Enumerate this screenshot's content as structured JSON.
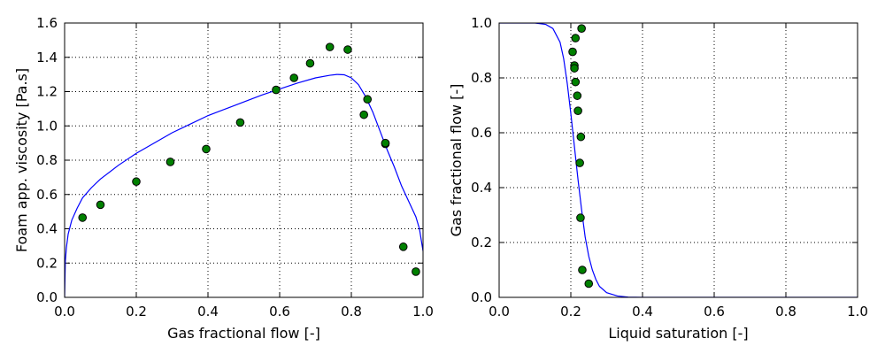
{
  "figure": {
    "line_color": "#0000ff",
    "marker_fill": "#008000",
    "marker_edge": "#000000"
  },
  "chart_data": [
    {
      "type": "scatter",
      "title": "",
      "xlabel": "Gas fractional flow [-]",
      "ylabel": "Foam app. viscosity [Pa.s]",
      "xlim": [
        0,
        1
      ],
      "ylim": [
        0,
        1.6
      ],
      "xticks": [
        0.0,
        0.2,
        0.4,
        0.6,
        0.8,
        1.0
      ],
      "xtick_labels": [
        "0.0",
        "0.2",
        "0.4",
        "0.6",
        "0.8",
        "1.0"
      ],
      "yticks": [
        0.0,
        0.2,
        0.4,
        0.6,
        0.8,
        1.0,
        1.2,
        1.4,
        1.6
      ],
      "ytick_labels": [
        "0.0",
        "0.2",
        "0.4",
        "0.6",
        "0.8",
        "1.0",
        "1.2",
        "1.4",
        "1.6"
      ],
      "grid": true,
      "legend": "none",
      "points": [
        {
          "x": 0.05,
          "y": 0.465
        },
        {
          "x": 0.1,
          "y": 0.54
        },
        {
          "x": 0.2,
          "y": 0.675
        },
        {
          "x": 0.295,
          "y": 0.79
        },
        {
          "x": 0.395,
          "y": 0.865
        },
        {
          "x": 0.49,
          "y": 1.02
        },
        {
          "x": 0.59,
          "y": 1.21
        },
        {
          "x": 0.64,
          "y": 1.28
        },
        {
          "x": 0.685,
          "y": 1.365
        },
        {
          "x": 0.74,
          "y": 1.46
        },
        {
          "x": 0.79,
          "y": 1.445
        },
        {
          "x": 0.835,
          "y": 1.065
        },
        {
          "x": 0.845,
          "y": 1.155
        },
        {
          "x": 0.895,
          "y": 0.895
        },
        {
          "x": 0.895,
          "y": 0.9
        },
        {
          "x": 0.945,
          "y": 0.295
        },
        {
          "x": 0.98,
          "y": 0.15
        }
      ],
      "curve": [
        {
          "x": 0.0,
          "y": 0.0
        },
        {
          "x": 0.002,
          "y": 0.21
        },
        {
          "x": 0.005,
          "y": 0.29
        },
        {
          "x": 0.01,
          "y": 0.37
        },
        {
          "x": 0.02,
          "y": 0.45
        },
        {
          "x": 0.035,
          "y": 0.52
        },
        {
          "x": 0.05,
          "y": 0.58
        },
        {
          "x": 0.075,
          "y": 0.64
        },
        {
          "x": 0.1,
          "y": 0.69
        },
        {
          "x": 0.15,
          "y": 0.77
        },
        {
          "x": 0.2,
          "y": 0.84
        },
        {
          "x": 0.25,
          "y": 0.9
        },
        {
          "x": 0.3,
          "y": 0.96
        },
        {
          "x": 0.35,
          "y": 1.01
        },
        {
          "x": 0.4,
          "y": 1.06
        },
        {
          "x": 0.45,
          "y": 1.1
        },
        {
          "x": 0.5,
          "y": 1.14
        },
        {
          "x": 0.55,
          "y": 1.18
        },
        {
          "x": 0.6,
          "y": 1.215
        },
        {
          "x": 0.65,
          "y": 1.25
        },
        {
          "x": 0.7,
          "y": 1.28
        },
        {
          "x": 0.74,
          "y": 1.295
        },
        {
          "x": 0.76,
          "y": 1.3
        },
        {
          "x": 0.78,
          "y": 1.298
        },
        {
          "x": 0.8,
          "y": 1.28
        },
        {
          "x": 0.82,
          "y": 1.24
        },
        {
          "x": 0.84,
          "y": 1.17
        },
        {
          "x": 0.86,
          "y": 1.08
        },
        {
          "x": 0.88,
          "y": 0.97
        },
        {
          "x": 0.9,
          "y": 0.86
        },
        {
          "x": 0.92,
          "y": 0.76
        },
        {
          "x": 0.94,
          "y": 0.65
        },
        {
          "x": 0.96,
          "y": 0.56
        },
        {
          "x": 0.98,
          "y": 0.47
        },
        {
          "x": 0.99,
          "y": 0.4
        },
        {
          "x": 1.0,
          "y": 0.27
        }
      ]
    },
    {
      "type": "scatter",
      "title": "",
      "xlabel": "Liquid saturation [-]",
      "ylabel": "Gas fractional flow [-]",
      "xlim": [
        0,
        1
      ],
      "ylim": [
        0,
        1
      ],
      "xticks": [
        0.0,
        0.2,
        0.4,
        0.6,
        0.8,
        1.0
      ],
      "xtick_labels": [
        "0.0",
        "0.2",
        "0.4",
        "0.6",
        "0.8",
        "1.0"
      ],
      "yticks": [
        0.0,
        0.2,
        0.4,
        0.6,
        0.8,
        1.0
      ],
      "ytick_labels": [
        "0.0",
        "0.2",
        "0.4",
        "0.6",
        "0.8",
        "1.0"
      ],
      "grid": true,
      "legend": "none",
      "points": [
        {
          "x": 0.23,
          "y": 0.98
        },
        {
          "x": 0.213,
          "y": 0.945
        },
        {
          "x": 0.205,
          "y": 0.895
        },
        {
          "x": 0.21,
          "y": 0.845
        },
        {
          "x": 0.21,
          "y": 0.835
        },
        {
          "x": 0.213,
          "y": 0.785
        },
        {
          "x": 0.218,
          "y": 0.735
        },
        {
          "x": 0.22,
          "y": 0.68
        },
        {
          "x": 0.228,
          "y": 0.585
        },
        {
          "x": 0.225,
          "y": 0.49
        },
        {
          "x": 0.227,
          "y": 0.29
        },
        {
          "x": 0.232,
          "y": 0.1
        },
        {
          "x": 0.25,
          "y": 0.05
        }
      ],
      "curve": [
        {
          "x": 0.0,
          "y": 1.0
        },
        {
          "x": 0.1,
          "y": 1.0
        },
        {
          "x": 0.13,
          "y": 0.995
        },
        {
          "x": 0.15,
          "y": 0.98
        },
        {
          "x": 0.17,
          "y": 0.93
        },
        {
          "x": 0.18,
          "y": 0.87
        },
        {
          "x": 0.19,
          "y": 0.78
        },
        {
          "x": 0.2,
          "y": 0.67
        },
        {
          "x": 0.21,
          "y": 0.55
        },
        {
          "x": 0.22,
          "y": 0.43
        },
        {
          "x": 0.23,
          "y": 0.32
        },
        {
          "x": 0.24,
          "y": 0.22
        },
        {
          "x": 0.25,
          "y": 0.15
        },
        {
          "x": 0.26,
          "y": 0.1
        },
        {
          "x": 0.27,
          "y": 0.065
        },
        {
          "x": 0.28,
          "y": 0.04
        },
        {
          "x": 0.3,
          "y": 0.017
        },
        {
          "x": 0.33,
          "y": 0.005
        },
        {
          "x": 0.36,
          "y": 0.001
        },
        {
          "x": 0.4,
          "y": 0.0
        },
        {
          "x": 1.0,
          "y": 0.0
        }
      ]
    }
  ]
}
